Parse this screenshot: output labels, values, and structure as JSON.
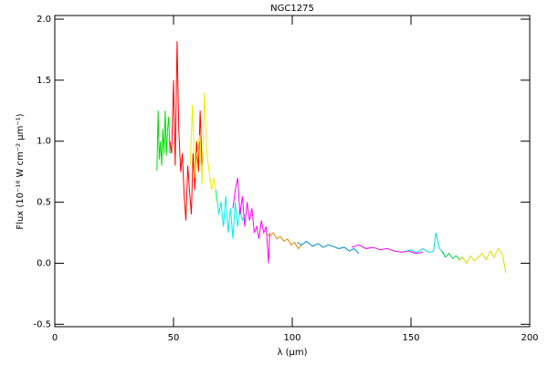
{
  "chart_data": {
    "type": "line",
    "title": "NGC1275",
    "x_label": "λ (μm)",
    "y_label": "Flux (10⁻¹⁸ W cm⁻² μm⁻¹)",
    "xlim": [
      0,
      200
    ],
    "xticks": [
      0,
      50,
      100,
      150,
      200
    ],
    "ylim": [
      -0.52,
      2.03
    ],
    "yticks": [
      -0.5,
      {
        "value": 0,
        "label": "0.0"
      },
      0.5,
      {
        "value": 1,
        "label": "1.0"
      },
      1.5,
      {
        "value": 2,
        "label": "2.0"
      }
    ],
    "series": [
      {
        "color": "#00dd00",
        "x": [
          43,
          43.5,
          44,
          44.5,
          45,
          45.5,
          46,
          46.5,
          47,
          47.5,
          48,
          48.5
        ],
        "values": [
          0.76,
          1.25,
          0.85,
          1.0,
          0.8,
          1.1,
          0.9,
          1.25,
          0.88,
          1.1,
          1.2,
          0.9
        ]
      },
      {
        "color": "#ff0000",
        "x": [
          48.5,
          49.2,
          50,
          50.7,
          51.5,
          52.2,
          53,
          53.7,
          54.5,
          55.2,
          56,
          56.7,
          57.5,
          58.2,
          59,
          59.7,
          60.5,
          61.2,
          62
        ],
        "values": [
          1.0,
          0.9,
          1.5,
          0.8,
          1.82,
          1.1,
          0.75,
          0.9,
          0.55,
          0.35,
          0.8,
          0.6,
          0.4,
          0.9,
          0.6,
          1.0,
          0.75,
          1.25,
          0.8
        ]
      },
      {
        "color": "#eeee00",
        "x": [
          57,
          58,
          59,
          60,
          61,
          62,
          63,
          64,
          65,
          66,
          67,
          68
        ],
        "values": [
          0.8,
          1.3,
          0.7,
          0.9,
          1.05,
          0.65,
          1.4,
          0.9,
          0.75,
          0.6,
          0.7,
          0.5
        ]
      },
      {
        "color": "#00eeee",
        "x": [
          68,
          69,
          70,
          71,
          72,
          73,
          74,
          75,
          76,
          77,
          78,
          79,
          80
        ],
        "values": [
          0.6,
          0.4,
          0.5,
          0.3,
          0.55,
          0.25,
          0.45,
          0.2,
          0.5,
          0.3,
          0.45,
          0.35,
          0.4
        ]
      },
      {
        "color": "#ff00ff",
        "x": [
          75,
          76,
          77,
          78,
          79,
          80,
          81,
          82,
          83,
          84,
          85,
          86,
          87,
          88,
          89,
          90,
          90.5
        ],
        "values": [
          0.45,
          0.6,
          0.7,
          0.4,
          0.55,
          0.3,
          0.5,
          0.35,
          0.45,
          0.25,
          0.3,
          0.2,
          0.35,
          0.25,
          0.3,
          0.0,
          0.25
        ]
      },
      {
        "color": "#e08800",
        "x": [
          89,
          90.5,
          92,
          93.5,
          95,
          96.5,
          98,
          99.5,
          101,
          102.5,
          104
        ],
        "values": [
          0.25,
          0.22,
          0.25,
          0.2,
          0.22,
          0.18,
          0.2,
          0.15,
          0.17,
          0.12,
          0.15
        ]
      },
      {
        "color": "#0090c8",
        "x": [
          102,
          104,
          106,
          108.5,
          111,
          113,
          115,
          117,
          119.5,
          122,
          124,
          126,
          128
        ],
        "values": [
          0.17,
          0.15,
          0.18,
          0.14,
          0.16,
          0.13,
          0.15,
          0.14,
          0.12,
          0.13,
          0.1,
          0.12,
          0.08
        ]
      },
      {
        "color": "#ee00ee",
        "x": [
          125,
          128,
          131,
          134,
          137,
          140,
          143,
          146,
          149,
          152,
          155
        ],
        "values": [
          0.13,
          0.15,
          0.12,
          0.13,
          0.11,
          0.12,
          0.1,
          0.09,
          0.1,
          0.08,
          0.09
        ]
      },
      {
        "color": "#00dddd",
        "x": [
          148,
          150,
          152,
          153.5,
          155,
          156.5,
          158,
          159.5,
          160.5,
          162,
          164
        ],
        "values": [
          0.1,
          0.11,
          0.09,
          0.1,
          0.12,
          0.1,
          0.09,
          0.1,
          0.25,
          0.12,
          0.08
        ]
      },
      {
        "color": "#00cc44",
        "x": [
          163,
          164.5,
          166,
          167.5,
          169,
          170.5,
          172
        ],
        "values": [
          0.1,
          0.05,
          0.08,
          0.04,
          0.06,
          0.03,
          0.05
        ]
      },
      {
        "color": "#dddd00",
        "x": [
          170,
          171.7,
          173.4,
          175,
          176.7,
          178.4,
          180,
          181.7,
          183.4,
          185,
          186.7,
          188.4,
          190
        ],
        "values": [
          0.02,
          0.05,
          0.0,
          0.06,
          0.02,
          0.05,
          0.08,
          0.03,
          0.1,
          0.05,
          0.12,
          0.08,
          -0.08
        ]
      }
    ]
  }
}
